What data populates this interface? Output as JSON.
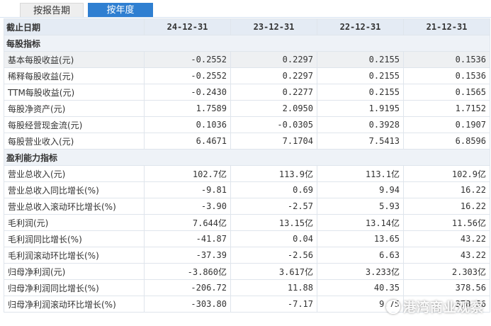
{
  "tabs": [
    {
      "label": "按报告期",
      "active": false
    },
    {
      "label": "按年度",
      "active": true
    }
  ],
  "table": {
    "header": [
      "截止日期",
      "24-12-31",
      "23-12-31",
      "22-12-31",
      "21-12-31"
    ],
    "sections": [
      {
        "title": "每股指标",
        "rows": [
          {
            "label": "基本每股收益(元)",
            "values": [
              "-0.2552",
              "0.2297",
              "0.2155",
              "0.1536"
            ],
            "highlight": true
          },
          {
            "label": "稀释每股收益(元)",
            "values": [
              "-0.2552",
              "0.2297",
              "0.2155",
              "0.1536"
            ]
          },
          {
            "label": "TTM每股收益(元)",
            "values": [
              "-0.2430",
              "0.2277",
              "0.2155",
              "0.1565"
            ]
          },
          {
            "label": "每股净资产(元)",
            "values": [
              "1.7589",
              "2.0950",
              "1.9195",
              "1.7152"
            ]
          },
          {
            "label": "每股经营现金流(元)",
            "values": [
              "0.1036",
              "-0.0305",
              "0.3928",
              "0.1907"
            ]
          },
          {
            "label": "每股营业收入(元)",
            "values": [
              "6.4671",
              "7.1704",
              "7.5413",
              "6.8596"
            ]
          }
        ]
      },
      {
        "title": "盈利能力指标",
        "rows": [
          {
            "label": "营业总收入(元)",
            "values": [
              "102.7亿",
              "113.9亿",
              "113.1亿",
              "102.9亿"
            ]
          },
          {
            "label": "营业总收入同比增长(%)",
            "values": [
              "-9.81",
              "0.69",
              "9.94",
              "16.22"
            ]
          },
          {
            "label": "营业总收入滚动环比增长(%)",
            "values": [
              "-3.90",
              "-2.57",
              "5.93",
              "16.22"
            ]
          },
          {
            "label": "毛利润(元)",
            "values": [
              "7.644亿",
              "13.15亿",
              "13.14亿",
              "11.56亿"
            ]
          },
          {
            "label": "毛利润同比增长(%)",
            "values": [
              "-41.87",
              "0.04",
              "13.65",
              "43.22"
            ]
          },
          {
            "label": "毛利润滚动环比增长(%)",
            "values": [
              "-37.39",
              "-2.56",
              "6.63",
              "43.22"
            ]
          },
          {
            "label": "归母净利润(元)",
            "values": [
              "-3.860亿",
              "3.617亿",
              "3.233亿",
              "2.303亿"
            ]
          },
          {
            "label": "归母净利润同比增长(%)",
            "values": [
              "-206.72",
              "11.88",
              "40.35",
              "378.56"
            ]
          },
          {
            "label": "归母净利润滚动环比增长(%)",
            "values": [
              "-303.80",
              "-7.17",
              "9.75",
              "378.56"
            ]
          }
        ]
      }
    ]
  },
  "watermark": {
    "text": "港湾商业观察",
    "icon": "check-circle-icon"
  }
}
